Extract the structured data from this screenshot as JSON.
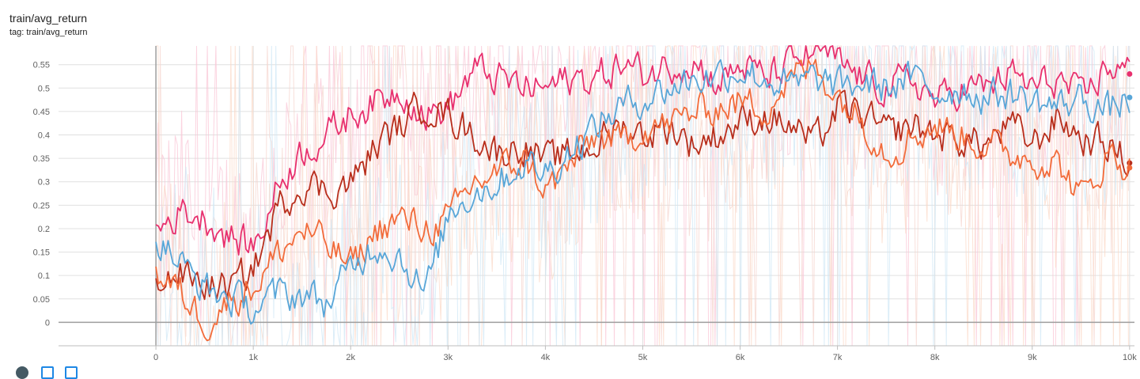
{
  "card": {
    "title": "train/avg_return",
    "subtitle": "tag: train/avg_return"
  },
  "footer": {
    "icons": [
      "fullscreen-icon",
      "log-scale-toggle-icon",
      "fit-domain-icon"
    ]
  },
  "chart_data": {
    "type": "line",
    "title": "train/avg_return",
    "xlabel": "",
    "ylabel": "",
    "xlim": [
      -1000,
      10050
    ],
    "ylim": [
      -0.05,
      0.59
    ],
    "x_ticks": [
      {
        "v": 0,
        "label": "0"
      },
      {
        "v": 1000,
        "label": "1k"
      },
      {
        "v": 2000,
        "label": "2k"
      },
      {
        "v": 3000,
        "label": "3k"
      },
      {
        "v": 4000,
        "label": "4k"
      },
      {
        "v": 5000,
        "label": "5k"
      },
      {
        "v": 6000,
        "label": "6k"
      },
      {
        "v": 7000,
        "label": "7k"
      },
      {
        "v": 8000,
        "label": "8k"
      },
      {
        "v": 9000,
        "label": "9k"
      },
      {
        "v": 10000,
        "label": "10k"
      }
    ],
    "y_ticks": [
      {
        "v": 0,
        "label": "0"
      },
      {
        "v": 0.05,
        "label": "0.05"
      },
      {
        "v": 0.1,
        "label": "0.1"
      },
      {
        "v": 0.15,
        "label": "0.15"
      },
      {
        "v": 0.2,
        "label": "0.2"
      },
      {
        "v": 0.25,
        "label": "0.25"
      },
      {
        "v": 0.3,
        "label": "0.3"
      },
      {
        "v": 0.35,
        "label": "0.35"
      },
      {
        "v": 0.4,
        "label": "0.4"
      },
      {
        "v": 0.45,
        "label": "0.45"
      },
      {
        "v": 0.5,
        "label": "0.5"
      },
      {
        "v": 0.55,
        "label": "0.55"
      }
    ],
    "grid": true,
    "raw_noise_color": "#f8c8d8",
    "series": [
      {
        "color": "#e8306e",
        "x": [
          0,
          250,
          500,
          750,
          1000,
          1250,
          1500,
          1750,
          2000,
          2250,
          2500,
          2750,
          3000,
          3250,
          3500,
          3750,
          4000,
          4250,
          4500,
          4750,
          5000,
          5250,
          5500,
          5750,
          6000,
          6250,
          6500,
          6750,
          7000,
          7250,
          7500,
          7750,
          8000,
          8250,
          8500,
          8750,
          9000,
          9250,
          9500,
          9750,
          10000
        ],
        "y": [
          0.2,
          0.24,
          0.22,
          0.18,
          0.16,
          0.3,
          0.37,
          0.4,
          0.45,
          0.47,
          0.5,
          0.44,
          0.46,
          0.54,
          0.52,
          0.5,
          0.5,
          0.52,
          0.52,
          0.55,
          0.53,
          0.55,
          0.56,
          0.51,
          0.55,
          0.52,
          0.55,
          0.58,
          0.55,
          0.52,
          0.5,
          0.52,
          0.47,
          0.5,
          0.5,
          0.53,
          0.5,
          0.52,
          0.47,
          0.55,
          0.53
        ]
      },
      {
        "color": "#b82e1c",
        "x": [
          0,
          250,
          500,
          750,
          1000,
          1250,
          1500,
          1750,
          2000,
          2250,
          2500,
          2750,
          3000,
          3250,
          3500,
          3750,
          4000,
          4250,
          4500,
          4750,
          5000,
          5250,
          5500,
          5750,
          6000,
          6250,
          6500,
          6750,
          7000,
          7250,
          7500,
          7750,
          8000,
          8250,
          8500,
          8750,
          9000,
          9250,
          9500,
          9750,
          10000
        ],
        "y": [
          0.1,
          0.1,
          0.08,
          0.07,
          0.12,
          0.25,
          0.3,
          0.28,
          0.3,
          0.38,
          0.42,
          0.47,
          0.44,
          0.4,
          0.36,
          0.38,
          0.34,
          0.36,
          0.38,
          0.42,
          0.4,
          0.42,
          0.38,
          0.4,
          0.43,
          0.44,
          0.42,
          0.38,
          0.46,
          0.44,
          0.4,
          0.42,
          0.4,
          0.39,
          0.38,
          0.42,
          0.38,
          0.44,
          0.39,
          0.38,
          0.34
        ]
      },
      {
        "color": "#f26b3a",
        "x": [
          0,
          250,
          500,
          750,
          1000,
          1250,
          1500,
          1750,
          2000,
          2250,
          2500,
          2750,
          3000,
          3250,
          3500,
          3750,
          4000,
          4250,
          4500,
          4750,
          5000,
          5250,
          5500,
          5750,
          6000,
          6250,
          6500,
          6750,
          7000,
          7250,
          7500,
          7750,
          8000,
          8250,
          8500,
          8750,
          9000,
          9250,
          9500,
          9750,
          10000
        ],
        "y": [
          0.1,
          0.06,
          0.0,
          0.05,
          0.08,
          0.15,
          0.2,
          0.16,
          0.12,
          0.2,
          0.22,
          0.2,
          0.22,
          0.3,
          0.32,
          0.35,
          0.28,
          0.34,
          0.4,
          0.38,
          0.42,
          0.42,
          0.45,
          0.46,
          0.47,
          0.46,
          0.52,
          0.55,
          0.48,
          0.43,
          0.36,
          0.4,
          0.42,
          0.4,
          0.38,
          0.36,
          0.35,
          0.34,
          0.26,
          0.36,
          0.33
        ]
      },
      {
        "color": "#58a6d8",
        "x": [
          0,
          250,
          500,
          750,
          1000,
          1250,
          1500,
          1750,
          2000,
          2250,
          2500,
          2750,
          3000,
          3250,
          3500,
          3750,
          4000,
          4250,
          4500,
          4750,
          5000,
          5250,
          5500,
          5750,
          6000,
          6250,
          6500,
          6750,
          7000,
          7250,
          7500,
          7750,
          8000,
          8250,
          8500,
          8750,
          9000,
          9250,
          9500,
          9750,
          10000
        ],
        "y": [
          0.18,
          0.12,
          0.07,
          0.05,
          0.03,
          0.06,
          0.06,
          0.04,
          0.12,
          0.17,
          0.14,
          0.06,
          0.24,
          0.28,
          0.3,
          0.34,
          0.32,
          0.37,
          0.42,
          0.46,
          0.48,
          0.5,
          0.52,
          0.53,
          0.54,
          0.52,
          0.5,
          0.52,
          0.5,
          0.51,
          0.5,
          0.52,
          0.49,
          0.5,
          0.48,
          0.49,
          0.47,
          0.46,
          0.48,
          0.45,
          0.48
        ]
      }
    ]
  }
}
